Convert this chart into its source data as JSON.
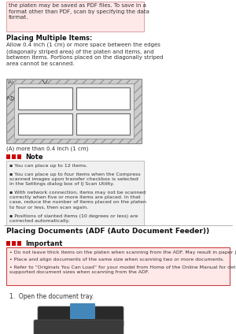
{
  "bg_color": "#ffffff",
  "pink_bg": "#ffe8e8",
  "top_pink_text": "the platen may be saved as PDF files. To save in a\nformat other than PDF, scan by specifying the data\nformat.",
  "placing_multiple_title": "Placing Multiple Items:",
  "placing_multiple_body": "Allow 0.4 inch (1 cm) or more space between the edges\n(diagonally striped area) of the platen and items, and\nbetween items. Portions placed on the diagonally striped\narea cannot be scanned.",
  "diagram_label_more": "(A) more than 0.4 inch (1 cm)",
  "note_title": "Note",
  "note_bullets": [
    "You can place up to 12 items.",
    "You can place up to four items when the Compress\nscanned images upon transfer checkbox is selected\nin the Settings dialog box of IJ Scan Utility.",
    "With network connection, items may not be scanned\ncorrectly when five or more items are placed. In that\ncase, reduce the number of items placed on the platen\nto four or less, then scan again.",
    "Positions of slanted items (10 degrees or less) are\ncorrected automatically."
  ],
  "section_title": "Placing Documents (ADF (Auto Document Feeder))",
  "important_title": "Important",
  "important_bullets": [
    "Do not leave thick items on the platen when scanning from the ADF. May result in paper jam.",
    "Place and align documents of the same size when scanning two or more documents.",
    "Refer to “Originals You Can Load” for your model from Home of the Online Manual for details on\nsupported document sizes when scanning from the ADF."
  ],
  "step_text": "1.  Open the document tray."
}
